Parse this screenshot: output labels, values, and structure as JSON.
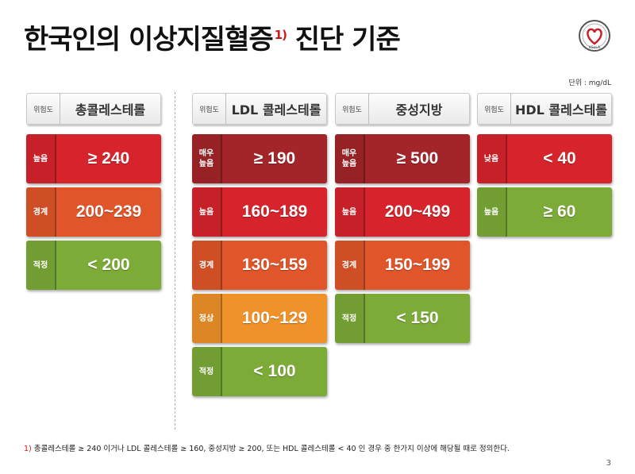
{
  "title": {
    "main": "한국인의 이상지질혈증",
    "sup": "1)",
    "tail": " 진단 기준"
  },
  "unit": "단위 : mg/dL",
  "colors": {
    "darkred": "#a3252a",
    "red": "#d7242c",
    "orange": "#e0552a",
    "amber": "#f0922a",
    "green": "#7cab38"
  },
  "columns": [
    {
      "risk_label": "위험도",
      "name": "총콜레스테롤",
      "rows": [
        {
          "level": "높음",
          "value": "≥ 240",
          "color": "red"
        },
        {
          "level": "경계",
          "value": "200~239",
          "color": "orange"
        },
        {
          "level": "적정",
          "value": "< 200",
          "color": "green"
        }
      ]
    },
    {
      "risk_label": "위험도",
      "name": "LDL 콜레스테롤",
      "rows": [
        {
          "level": "매우\n높음",
          "value": "≥ 190",
          "color": "darkred"
        },
        {
          "level": "높음",
          "value": "160~189",
          "color": "red"
        },
        {
          "level": "경계",
          "value": "130~159",
          "color": "orange"
        },
        {
          "level": "정상",
          "value": "100~129",
          "color": "amber"
        },
        {
          "level": "적정",
          "value": "< 100",
          "color": "green"
        }
      ]
    },
    {
      "risk_label": "위험도",
      "name": "중성지방",
      "rows": [
        {
          "level": "매우\n높음",
          "value": "≥ 500",
          "color": "darkred"
        },
        {
          "level": "높음",
          "value": "200~499",
          "color": "red"
        },
        {
          "level": "경계",
          "value": "150~199",
          "color": "orange"
        },
        {
          "level": "적정",
          "value": "< 150",
          "color": "green"
        }
      ]
    },
    {
      "risk_label": "위험도",
      "name": "HDL 콜레스테롤",
      "rows": [
        {
          "level": "낮음",
          "value": "< 40",
          "color": "red"
        },
        {
          "level": "높음",
          "value": "≥ 60",
          "color": "green"
        }
      ]
    }
  ],
  "footnote": {
    "mark": "1)",
    "text": " 총콜레스테롤  ≥ 240 이거나 LDL 콜레스테롤 ≥ 160, 중성지방 ≥ 200, 또는 HDL 콜레스테롤 < 40 인 경우 중 한가지 이상에 해당될 때로 정의한다."
  },
  "page_number": "3",
  "logo": {
    "icon": "heart-logo-icon",
    "text": "KSoLA"
  }
}
